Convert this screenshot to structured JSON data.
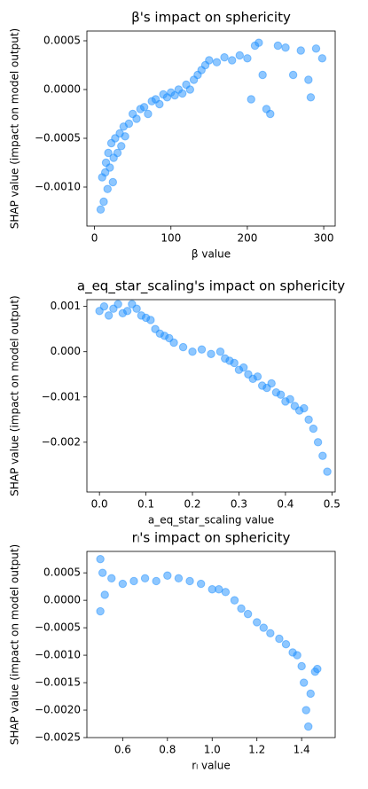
{
  "chart_data": [
    {
      "type": "scatter",
      "title": "β's impact on sphericity",
      "x_label": "β value",
      "y_label": "SHAP value (impact on model output)",
      "color": "#1e90ff",
      "x": [
        8,
        10,
        12,
        14,
        15,
        17,
        18,
        20,
        22,
        24,
        25,
        27,
        30,
        33,
        35,
        38,
        40,
        45,
        50,
        55,
        60,
        65,
        70,
        75,
        80,
        85,
        90,
        95,
        100,
        105,
        110,
        115,
        120,
        125,
        130,
        135,
        140,
        145,
        150,
        160,
        170,
        180,
        190,
        200,
        205,
        210,
        215,
        220,
        225,
        230,
        240,
        250,
        260,
        270,
        280,
        283,
        290,
        298
      ],
      "values": [
        -0.00123,
        -0.0009,
        -0.00115,
        -0.00085,
        -0.00075,
        -0.00102,
        -0.00065,
        -0.0008,
        -0.00055,
        -0.00095,
        -0.0007,
        -0.0005,
        -0.00065,
        -0.00045,
        -0.00058,
        -0.00038,
        -0.00048,
        -0.00035,
        -0.00025,
        -0.0003,
        -0.0002,
        -0.00018,
        -0.00025,
        -0.00012,
        -0.0001,
        -0.00015,
        -5e-05,
        -8e-05,
        -3e-05,
        -6e-05,
        0,
        -4e-05,
        5e-05,
        0,
        0.0001,
        0.00015,
        0.0002,
        0.00025,
        0.0003,
        0.00028,
        0.00033,
        0.0003,
        0.00035,
        0.00032,
        -0.0001,
        0.00045,
        0.00048,
        0.00015,
        -0.0002,
        -0.00025,
        0.00045,
        0.00043,
        0.00015,
        0.0004,
        0.0001,
        -8e-05,
        0.00042,
        0.00032
      ],
      "xlim": [
        -10,
        315
      ],
      "xticks": [
        0,
        100,
        200,
        300
      ],
      "ylim": [
        -0.0014,
        0.0006
      ],
      "yticks": [
        {
          "value": -0.001,
          "label": "−0.0010"
        },
        {
          "value": -0.0005,
          "label": "−0.0005"
        },
        {
          "value": 0,
          "label": "0.0000"
        },
        0.0005
      ]
    },
    {
      "type": "scatter",
      "title": "a_eq_star_scaling's impact on sphericity",
      "x_label": "a_eq_star_scaling value",
      "y_label": "SHAP value (impact on model output)",
      "color": "#1e90ff",
      "x": [
        0.0,
        0.01,
        0.02,
        0.03,
        0.04,
        0.05,
        0.06,
        0.07,
        0.08,
        0.09,
        0.1,
        0.11,
        0.12,
        0.13,
        0.14,
        0.15,
        0.16,
        0.18,
        0.2,
        0.22,
        0.24,
        0.26,
        0.27,
        0.28,
        0.29,
        0.3,
        0.31,
        0.32,
        0.33,
        0.34,
        0.35,
        0.36,
        0.37,
        0.38,
        0.39,
        0.4,
        0.41,
        0.42,
        0.43,
        0.44,
        0.45,
        0.46,
        0.47,
        0.48,
        0.49
      ],
      "values": [
        0.0009,
        0.001,
        0.0008,
        0.00095,
        0.00105,
        0.00085,
        0.0009,
        0.00105,
        0.00095,
        0.0008,
        0.00075,
        0.0007,
        0.0005,
        0.0004,
        0.00035,
        0.0003,
        0.0002,
        0.0001,
        0,
        5e-05,
        -5e-05,
        0,
        -0.00015,
        -0.0002,
        -0.00025,
        -0.0004,
        -0.00035,
        -0.0005,
        -0.0006,
        -0.00055,
        -0.00075,
        -0.0008,
        -0.0007,
        -0.0009,
        -0.00095,
        -0.0011,
        -0.00105,
        -0.0012,
        -0.0013,
        -0.00125,
        -0.0015,
        -0.0017,
        -0.002,
        -0.0023,
        -0.00265
      ],
      "xlim": [
        -0.027,
        0.507
      ],
      "xticks": [
        {
          "value": 0,
          "label": "0.0"
        },
        0.1,
        0.2,
        0.3,
        0.4,
        0.5
      ],
      "ylim": [
        -0.0031,
        0.00115
      ],
      "yticks": [
        {
          "value": -0.002,
          "label": "−0.002"
        },
        {
          "value": -0.001,
          "label": "−0.001"
        },
        {
          "value": 0,
          "label": "0.000"
        },
        0.001
      ]
    },
    {
      "type": "scatter",
      "title": "rₗ's impact on sphericity",
      "x_label": "rₗ value",
      "y_label": "SHAP value (impact on model output)",
      "color": "#1e90ff",
      "x": [
        0.5,
        0.5,
        0.51,
        0.52,
        0.55,
        0.6,
        0.65,
        0.7,
        0.75,
        0.8,
        0.85,
        0.9,
        0.95,
        1.0,
        1.03,
        1.06,
        1.1,
        1.13,
        1.16,
        1.2,
        1.23,
        1.26,
        1.3,
        1.33,
        1.36,
        1.38,
        1.4,
        1.41,
        1.42,
        1.43,
        1.44,
        1.46,
        1.47
      ],
      "values": [
        -0.0002,
        0.00075,
        0.0005,
        0.0001,
        0.0004,
        0.0003,
        0.00035,
        0.0004,
        0.00035,
        0.00045,
        0.0004,
        0.00035,
        0.0003,
        0.0002,
        0.0002,
        0.00015,
        0,
        -0.00015,
        -0.00025,
        -0.0004,
        -0.0005,
        -0.0006,
        -0.0007,
        -0.0008,
        -0.00095,
        -0.001,
        -0.0012,
        -0.0015,
        -0.002,
        -0.0023,
        -0.0017,
        -0.0013,
        -0.00125
      ],
      "xlim": [
        0.44,
        1.55
      ],
      "xticks": [
        0.6,
        0.8,
        {
          "value": 1,
          "label": "1.0"
        },
        1.2,
        1.4
      ],
      "ylim": [
        -0.0025,
        0.00089
      ],
      "yticks": [
        {
          "value": -0.0025,
          "label": "−0.0025"
        },
        {
          "value": -0.002,
          "label": "−0.0020"
        },
        {
          "value": -0.0015,
          "label": "−0.0015"
        },
        {
          "value": -0.001,
          "label": "−0.0010"
        },
        {
          "value": -0.0005,
          "label": "−0.0005"
        },
        {
          "value": 0,
          "label": "0.0000"
        },
        0.0005
      ]
    }
  ]
}
